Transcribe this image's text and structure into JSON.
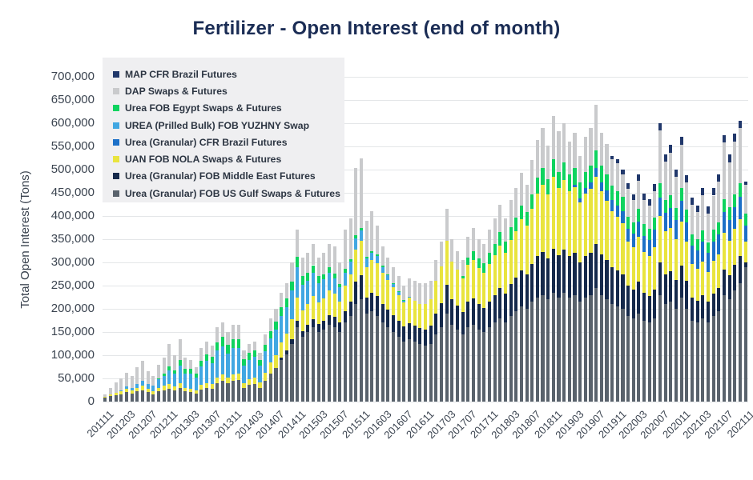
{
  "chart_data": {
    "type": "bar",
    "stacked": true,
    "title": "Fertilizer - Open Interest (end of month)",
    "xlabel": "",
    "ylabel": "Total Open Interest (Tons)",
    "ylim": [
      0,
      700000
    ],
    "ytick_step": 50000,
    "grid": "horizontal",
    "legend_position": "top-left-inset",
    "title_color": "#1b2d55",
    "categories": [
      "201111",
      "201112",
      "201201",
      "201202",
      "201203",
      "201204",
      "201205",
      "201206",
      "201207",
      "201208",
      "201209",
      "201210",
      "201211",
      "201212",
      "201301",
      "201302",
      "201303",
      "201304",
      "201305",
      "201306",
      "201307",
      "201308",
      "201309",
      "201310",
      "201311",
      "201312",
      "201401",
      "201402",
      "201403",
      "201404",
      "201405",
      "201406",
      "201407",
      "201408",
      "201409",
      "201410",
      "201411",
      "201412",
      "201501",
      "201502",
      "201503",
      "201504",
      "201505",
      "201506",
      "201507",
      "201508",
      "201509",
      "201510",
      "201511",
      "201512",
      "201601",
      "201602",
      "201603",
      "201604",
      "201605",
      "201606",
      "201607",
      "201608",
      "201609",
      "201610",
      "201611",
      "201612",
      "201701",
      "201702",
      "201703",
      "201704",
      "201705",
      "201706",
      "201707",
      "201708",
      "201709",
      "201710",
      "201711",
      "201712",
      "201801",
      "201802",
      "201803",
      "201804",
      "201805",
      "201806",
      "201807",
      "201808",
      "201809",
      "201810",
      "201811",
      "201812",
      "201901",
      "201902",
      "201903",
      "201904",
      "201905",
      "201906",
      "201907",
      "201908",
      "201909",
      "201910",
      "201911",
      "201912",
      "202001",
      "202002",
      "202003",
      "202004",
      "202005",
      "202006",
      "202007",
      "202008",
      "202009",
      "202010",
      "202011",
      "202012",
      "202101",
      "202102",
      "202103",
      "202104",
      "202105",
      "202106",
      "202107",
      "202108",
      "202109",
      "202110",
      "202111"
    ],
    "x_tick_labels": [
      "201111",
      "201203",
      "201207",
      "201211",
      "201303",
      "201307",
      "201311",
      "201403",
      "201407",
      "201411",
      "201503",
      "201507",
      "201511",
      "201603",
      "201607",
      "201611",
      "201703",
      "201707",
      "201711",
      "201803",
      "201807",
      "201811",
      "201903",
      "201907",
      "201911",
      "202003",
      "202007",
      "202011",
      "202103",
      "202107",
      "202111"
    ],
    "series": [
      {
        "name": "MAP CFR Brazil Futures",
        "color": "#21386b",
        "values": [
          0,
          0,
          0,
          0,
          0,
          0,
          0,
          0,
          0,
          0,
          0,
          0,
          0,
          0,
          0,
          0,
          0,
          0,
          0,
          0,
          0,
          0,
          0,
          0,
          0,
          0,
          0,
          0,
          0,
          0,
          0,
          0,
          0,
          0,
          0,
          0,
          0,
          0,
          0,
          0,
          0,
          0,
          0,
          0,
          0,
          0,
          0,
          0,
          0,
          0,
          0,
          0,
          0,
          0,
          0,
          0,
          0,
          0,
          0,
          0,
          0,
          0,
          0,
          0,
          0,
          0,
          0,
          0,
          0,
          0,
          0,
          0,
          0,
          0,
          0,
          0,
          0,
          0,
          0,
          0,
          0,
          0,
          0,
          0,
          0,
          0,
          0,
          0,
          0,
          0,
          0,
          0,
          0,
          0,
          0,
          8000,
          10000,
          10000,
          12000,
          12000,
          14000,
          14000,
          14000,
          15000,
          15000,
          15000,
          16000,
          16000,
          16000,
          15000,
          15000,
          14000,
          15000,
          14000,
          16000,
          16000,
          16000,
          16000,
          16000,
          16000,
          8000
        ]
      },
      {
        "name": "DAP Swaps & Futures",
        "color": "#c9cacc",
        "values": [
          5000,
          15000,
          23000,
          26000,
          30000,
          26000,
          37000,
          44000,
          27000,
          21000,
          30000,
          35000,
          49000,
          32000,
          45000,
          25000,
          20000,
          15000,
          27000,
          28000,
          24000,
          32000,
          31000,
          28000,
          30000,
          30000,
          18000,
          20000,
          19000,
          15000,
          22000,
          28000,
          28000,
          32000,
          33000,
          41000,
          58000,
          40000,
          43000,
          46000,
          40000,
          45000,
          51000,
          59000,
          46000,
          84000,
          88000,
          145000,
          150000,
          78000,
          85000,
          63000,
          42000,
          35000,
          34000,
          32000,
          31000,
          39000,
          42000,
          44000,
          45000,
          39000,
          45000,
          53000,
          68000,
          48000,
          40000,
          35000,
          45000,
          50000,
          42000,
          41000,
          49000,
          55000,
          60000,
          50000,
          59000,
          63000,
          70000,
          60000,
          73000,
          80000,
          86000,
          71000,
          92000,
          87000,
          85000,
          71000,
          77000,
          58000,
          75000,
          81000,
          99000,
          72000,
          66000,
          56000,
          60000,
          49000,
          59000,
          48000,
          60000,
          52000,
          49000,
          58000,
          115000,
          82000,
          92000,
          66000,
          94000,
          60000,
          64000,
          58000,
          76000,
          62000,
          73000,
          87000,
          122000,
          97000,
          114000,
          118000,
          62000
        ]
      },
      {
        "name": "Urea FOB Egypt Swaps & Futures",
        "color": "#0fd35f",
        "values": [
          0,
          0,
          0,
          0,
          0,
          0,
          0,
          0,
          0,
          0,
          2000,
          4000,
          8000,
          8000,
          12000,
          10000,
          10000,
          8000,
          12000,
          14000,
          14000,
          18000,
          20000,
          18000,
          20000,
          20000,
          14000,
          15000,
          15000,
          12000,
          15000,
          16000,
          17000,
          18000,
          18000,
          20000,
          22000,
          18000,
          16000,
          16000,
          14000,
          12000,
          12000,
          10000,
          8000,
          8000,
          6000,
          6000,
          6000,
          4000,
          4000,
          4000,
          3000,
          3000,
          2000,
          2000,
          1000,
          0,
          0,
          0,
          0,
          0,
          0,
          0,
          0,
          0,
          0,
          5000,
          15000,
          20000,
          20000,
          22000,
          25000,
          25000,
          28000,
          25000,
          28000,
          30000,
          30000,
          28000,
          32000,
          35000,
          36000,
          34000,
          38000,
          35000,
          38000,
          36000,
          36000,
          34000,
          35000,
          36000,
          38000,
          35000,
          34000,
          32000,
          30000,
          30000,
          26000,
          25000,
          28000,
          25000,
          24000,
          26000,
          30000,
          28000,
          28000,
          26000,
          28000,
          26000,
          24000,
          24000,
          25000,
          24000,
          26000,
          26000,
          28000,
          27000,
          28000,
          30000,
          25000
        ]
      },
      {
        "name": "UREA (Prilled Bulk) FOB YUZHNY Swap",
        "color": "#41a7e2",
        "values": [
          0,
          0,
          0,
          2000,
          4000,
          5000,
          8000,
          10000,
          10000,
          12000,
          18000,
          22000,
          30000,
          28000,
          38000,
          30000,
          32000,
          28000,
          40000,
          48000,
          44000,
          58000,
          60000,
          52000,
          56000,
          55000,
          38000,
          42000,
          44000,
          36000,
          46000,
          52000,
          55000,
          58000,
          58000,
          62000,
          66000,
          56000,
          50000,
          50000,
          42000,
          40000,
          38000,
          34000,
          30000,
          28000,
          26000,
          24000,
          22000,
          18000,
          16000,
          14000,
          12000,
          10000,
          8000,
          6000,
          4000,
          2000,
          0,
          0,
          0,
          0,
          0,
          0,
          0,
          0,
          0,
          0,
          0,
          0,
          0,
          0,
          0,
          0,
          0,
          0,
          0,
          0,
          0,
          0,
          0,
          0,
          0,
          0,
          0,
          0,
          0,
          0,
          0,
          0,
          0,
          0,
          0,
          0,
          0,
          0,
          0,
          0,
          0,
          0,
          0,
          0,
          0,
          0,
          0,
          0,
          0,
          0,
          0,
          0,
          0,
          0,
          0,
          0,
          0,
          0,
          0,
          0,
          0,
          0,
          0
        ]
      },
      {
        "name": "Urea (Granular) CFR Brazil Futures",
        "color": "#1c70c8",
        "values": [
          0,
          0,
          0,
          0,
          0,
          0,
          0,
          0,
          0,
          0,
          0,
          0,
          0,
          0,
          0,
          0,
          0,
          0,
          0,
          0,
          0,
          0,
          0,
          0,
          0,
          0,
          0,
          0,
          0,
          0,
          0,
          0,
          0,
          0,
          0,
          0,
          0,
          0,
          0,
          0,
          0,
          0,
          0,
          0,
          0,
          0,
          0,
          0,
          0,
          0,
          0,
          0,
          0,
          0,
          0,
          0,
          0,
          0,
          0,
          0,
          0,
          0,
          0,
          0,
          0,
          0,
          0,
          0,
          0,
          0,
          0,
          0,
          0,
          0,
          0,
          0,
          0,
          0,
          0,
          0,
          0,
          0,
          0,
          0,
          0,
          0,
          0,
          0,
          5000,
          8000,
          12000,
          15000,
          18000,
          20000,
          22000,
          24000,
          25000,
          26000,
          28000,
          30000,
          32000,
          34000,
          36000,
          38000,
          40000,
          40000,
          42000,
          42000,
          44000,
          42000,
          40000,
          40000,
          42000,
          40000,
          42000,
          44000,
          46000,
          45000,
          46000,
          48000,
          35000
        ]
      },
      {
        "name": "UAN FOB NOLA Swaps & Futures",
        "color": "#e9e43e",
        "values": [
          2000,
          3000,
          5000,
          6000,
          8000,
          6000,
          8000,
          10000,
          8000,
          6000,
          8000,
          10000,
          10000,
          8000,
          10000,
          8000,
          8000,
          6000,
          10000,
          10000,
          10000,
          12000,
          14000,
          12000,
          14000,
          14000,
          10000,
          12000,
          14000,
          12000,
          18000,
          24000,
          28000,
          32000,
          36000,
          42000,
          50000,
          44000,
          46000,
          50000,
          46000,
          48000,
          52000,
          50000,
          46000,
          55000,
          60000,
          70000,
          75000,
          65000,
          70000,
          72000,
          68000,
          64000,
          60000,
          56000,
          52000,
          55000,
          54000,
          52000,
          54000,
          58000,
          70000,
          80000,
          95000,
          82000,
          78000,
          72000,
          80000,
          82000,
          78000,
          75000,
          80000,
          85000,
          92000,
          88000,
          95000,
          100000,
          110000,
          105000,
          118000,
          135000,
          145000,
          138000,
          155000,
          145000,
          150000,
          140000,
          142000,
          130000,
          135000,
          138000,
          145000,
          135000,
          128000,
          120000,
          115000,
          110000,
          95000,
          90000,
          98000,
          88000,
          85000,
          90000,
          100000,
          92000,
          94000,
          88000,
          95000,
          85000,
          72000,
          68000,
          72000,
          65000,
          70000,
          72000,
          78000,
          75000,
          78000,
          80000,
          45000
        ]
      },
      {
        "name": "Urea (Granular) FOB Middle East Futures",
        "color": "#15294b",
        "values": [
          0,
          0,
          0,
          0,
          0,
          0,
          0,
          0,
          0,
          0,
          0,
          0,
          0,
          0,
          0,
          0,
          0,
          0,
          0,
          0,
          0,
          0,
          0,
          0,
          0,
          0,
          0,
          0,
          0,
          0,
          0,
          0,
          0,
          5000,
          8000,
          10000,
          14000,
          12000,
          15000,
          18000,
          18000,
          20000,
          22000,
          22000,
          20000,
          25000,
          30000,
          48000,
          52000,
          35000,
          40000,
          42000,
          40000,
          38000,
          36000,
          34000,
          32000,
          34000,
          34000,
          34000,
          36000,
          38000,
          45000,
          52000,
          62000,
          55000,
          52000,
          48000,
          55000,
          58000,
          55000,
          52000,
          56000,
          60000,
          65000,
          62000,
          68000,
          72000,
          78000,
          75000,
          82000,
          88000,
          92000,
          88000,
          95000,
          90000,
          92000,
          88000,
          90000,
          85000,
          88000,
          90000,
          95000,
          88000,
          85000,
          80000,
          78000,
          75000,
          65000,
          62000,
          68000,
          60000,
          58000,
          62000,
          70000,
          65000,
          66000,
          62000,
          68000,
          60000,
          50000,
          48000,
          50000,
          45000,
          48000,
          50000,
          55000,
          52000,
          55000,
          58000,
          10000
        ]
      },
      {
        "name": "Urea (Granular) FOB US Gulf Swaps & Futures",
        "color": "#59626c",
        "values": [
          8000,
          12000,
          14000,
          16000,
          20000,
          18000,
          22000,
          24000,
          20000,
          16000,
          22000,
          24000,
          28000,
          24000,
          30000,
          22000,
          20000,
          18000,
          26000,
          30000,
          28000,
          40000,
          45000,
          40000,
          45000,
          46000,
          30000,
          36000,
          38000,
          30000,
          44000,
          60000,
          72000,
          90000,
          102000,
          125000,
          160000,
          140000,
          150000,
          160000,
          150000,
          155000,
          165000,
          160000,
          150000,
          170000,
          185000,
          210000,
          220000,
          190000,
          195000,
          185000,
          170000,
          160000,
          150000,
          140000,
          130000,
          135000,
          130000,
          125000,
          120000,
          125000,
          145000,
          160000,
          190000,
          165000,
          155000,
          145000,
          160000,
          165000,
          155000,
          150000,
          160000,
          170000,
          180000,
          170000,
          185000,
          195000,
          205000,
          200000,
          215000,
          225000,
          230000,
          220000,
          235000,
          225000,
          235000,
          225000,
          230000,
          215000,
          225000,
          230000,
          245000,
          230000,
          220000,
          210000,
          205000,
          200000,
          185000,
          180000,
          190000,
          175000,
          170000,
          180000,
          230000,
          210000,
          215000,
          200000,
          225000,
          200000,
          175000,
          170000,
          180000,
          170000,
          185000,
          195000,
          230000,
          220000,
          240000,
          255000,
          290000
        ]
      }
    ]
  }
}
